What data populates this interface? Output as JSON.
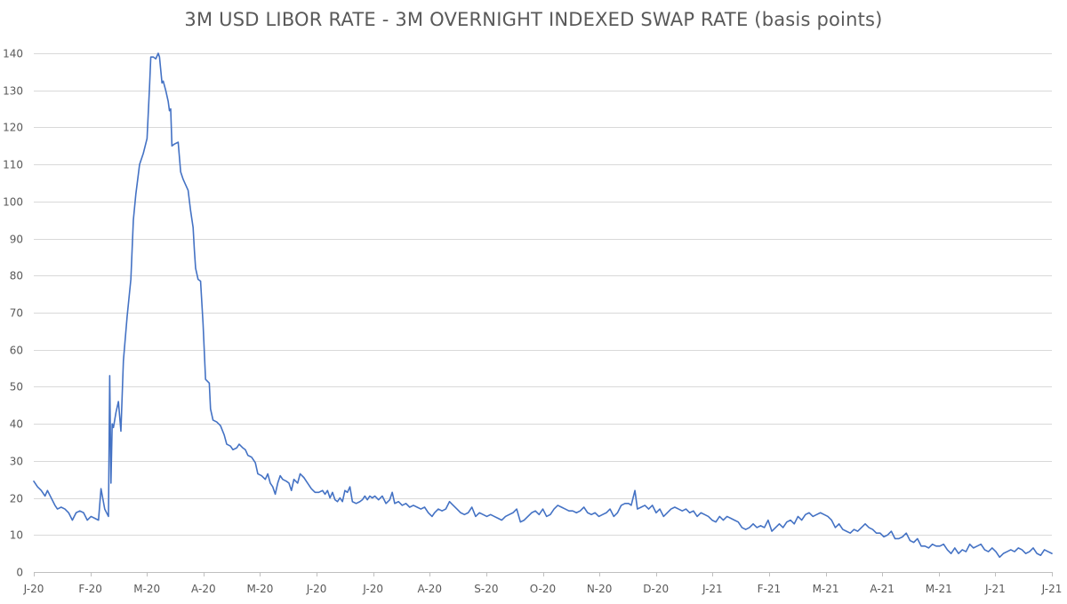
{
  "chart_data": {
    "type": "line",
    "title": "3M USD LIBOR RATE - 3M OVERNIGHT INDEXED SWAP RATE (basis points)",
    "xlabel": "",
    "ylabel": "",
    "ylim": [
      0,
      140
    ],
    "yticks": [
      "0",
      "10",
      "20",
      "30",
      "40",
      "50",
      "60",
      "70",
      "80",
      "90",
      "100",
      "110",
      "120",
      "130",
      "140"
    ],
    "xticks": [
      "J-20",
      "F-20",
      "M-20",
      "A-20",
      "M-20",
      "J-20",
      "J-20",
      "A-20",
      "S-20",
      "O-20",
      "N-20",
      "D-20",
      "J-21",
      "F-21",
      "M-21",
      "A-21",
      "M-21",
      "J-21",
      "J-21"
    ],
    "x_start": "2020-01",
    "x_end": "2021-07",
    "grid": true,
    "legend": "none",
    "line_color": "#4472C4",
    "series": [
      {
        "name": "",
        "values": [
          [
            0,
            24.5
          ],
          [
            3,
            23
          ],
          [
            6,
            22
          ],
          [
            9,
            20.5
          ],
          [
            11,
            22
          ],
          [
            14,
            20
          ],
          [
            17,
            18
          ],
          [
            19,
            17
          ],
          [
            22,
            17.5
          ],
          [
            25,
            17
          ],
          [
            28,
            16
          ],
          [
            31,
            14
          ],
          [
            34,
            16
          ],
          [
            37,
            16.5
          ],
          [
            40,
            16
          ],
          [
            43,
            14
          ],
          [
            46,
            15
          ],
          [
            49,
            14.5
          ],
          [
            52,
            14
          ],
          [
            54,
            22.5
          ],
          [
            57,
            17
          ],
          [
            60,
            15
          ],
          [
            61,
            53
          ],
          [
            62,
            24
          ],
          [
            63,
            40
          ],
          [
            64,
            39
          ],
          [
            66,
            43
          ],
          [
            68,
            46
          ],
          [
            70,
            38
          ],
          [
            72,
            57
          ],
          [
            75,
            69
          ],
          [
            78,
            79
          ],
          [
            80,
            95
          ],
          [
            82,
            102
          ],
          [
            85,
            110
          ],
          [
            88,
            113
          ],
          [
            91,
            117
          ],
          [
            93,
            131
          ],
          [
            94,
            139
          ],
          [
            96,
            139
          ],
          [
            98,
            138.5
          ],
          [
            100,
            140
          ],
          [
            101,
            139
          ],
          [
            103,
            132
          ],
          [
            104,
            132.5
          ],
          [
            106,
            130
          ],
          [
            108,
            127
          ],
          [
            109,
            124.5
          ],
          [
            110,
            125
          ],
          [
            111,
            115
          ],
          [
            113,
            115.5
          ],
          [
            116,
            116
          ],
          [
            118,
            108
          ],
          [
            120,
            106
          ],
          [
            122,
            104.5
          ],
          [
            124,
            103
          ],
          [
            126,
            97.5
          ],
          [
            128,
            93
          ],
          [
            129,
            87
          ],
          [
            130,
            82
          ],
          [
            132,
            79
          ],
          [
            134,
            78.5
          ],
          [
            136,
            67
          ],
          [
            138,
            52
          ],
          [
            141,
            51
          ],
          [
            142,
            44
          ],
          [
            144,
            41
          ],
          [
            147,
            40.5
          ],
          [
            150,
            39.5
          ],
          [
            153,
            37
          ],
          [
            155,
            34.5
          ],
          [
            158,
            34
          ],
          [
            160,
            33
          ],
          [
            163,
            33.5
          ],
          [
            165,
            34.5
          ],
          [
            168,
            33.5
          ],
          [
            170,
            33
          ],
          [
            172,
            31.5
          ],
          [
            175,
            31
          ],
          [
            178,
            29.5
          ],
          [
            180,
            26.5
          ],
          [
            183,
            26
          ],
          [
            186,
            25
          ],
          [
            188,
            26.5
          ],
          [
            190,
            24
          ],
          [
            192,
            23
          ],
          [
            194,
            21
          ],
          [
            196,
            24
          ],
          [
            198,
            26
          ],
          [
            200,
            25
          ],
          [
            203,
            24.5
          ],
          [
            205,
            24
          ],
          [
            207,
            22
          ],
          [
            209,
            25
          ],
          [
            212,
            24
          ],
          [
            214,
            26.5
          ],
          [
            217,
            25.5
          ],
          [
            220,
            24
          ],
          [
            223,
            22.5
          ],
          [
            226,
            21.5
          ],
          [
            229,
            21.5
          ],
          [
            232,
            22
          ],
          [
            234,
            21
          ],
          [
            236,
            22
          ],
          [
            238,
            20
          ],
          [
            240,
            21.5
          ],
          [
            242,
            19.5
          ],
          [
            244,
            19
          ],
          [
            246,
            20
          ],
          [
            248,
            19
          ],
          [
            250,
            22
          ],
          [
            252,
            21.5
          ],
          [
            254,
            23
          ],
          [
            256,
            19
          ],
          [
            259,
            18.5
          ],
          [
            262,
            19
          ],
          [
            264,
            19.5
          ],
          [
            266,
            20.5
          ],
          [
            268,
            19.5
          ],
          [
            270,
            20.5
          ],
          [
            272,
            20
          ],
          [
            274,
            20.5
          ],
          [
            277,
            19.5
          ],
          [
            280,
            20.5
          ],
          [
            283,
            18.5
          ],
          [
            286,
            19.5
          ],
          [
            288,
            21.5
          ],
          [
            290,
            18.5
          ],
          [
            293,
            19
          ],
          [
            296,
            18
          ],
          [
            299,
            18.5
          ],
          [
            302,
            17.5
          ],
          [
            305,
            18
          ],
          [
            308,
            17.5
          ],
          [
            311,
            17
          ],
          [
            314,
            17.5
          ],
          [
            317,
            16
          ],
          [
            320,
            15
          ],
          [
            322,
            16
          ],
          [
            325,
            17
          ],
          [
            328,
            16.5
          ],
          [
            331,
            17
          ],
          [
            334,
            19
          ],
          [
            337,
            18
          ],
          [
            340,
            17
          ],
          [
            343,
            16
          ],
          [
            346,
            15.5
          ],
          [
            349,
            16
          ],
          [
            352,
            17.5
          ],
          [
            355,
            15
          ],
          [
            358,
            16
          ],
          [
            361,
            15.5
          ],
          [
            364,
            15
          ],
          [
            367,
            15.5
          ],
          [
            370,
            15
          ],
          [
            373,
            14.5
          ],
          [
            376,
            14
          ],
          [
            379,
            15
          ],
          [
            382,
            15.5
          ],
          [
            385,
            16
          ],
          [
            388,
            17
          ],
          [
            391,
            13.5
          ],
          [
            394,
            14
          ],
          [
            397,
            15
          ],
          [
            400,
            16
          ],
          [
            403,
            16.5
          ],
          [
            406,
            15.5
          ],
          [
            409,
            17
          ],
          [
            412,
            15
          ],
          [
            415,
            15.5
          ],
          [
            418,
            17
          ],
          [
            421,
            18
          ],
          [
            424,
            17.5
          ],
          [
            427,
            17
          ],
          [
            430,
            16.5
          ],
          [
            433,
            16.5
          ],
          [
            436,
            16
          ],
          [
            439,
            16.5
          ],
          [
            442,
            17.5
          ],
          [
            445,
            16
          ],
          [
            448,
            15.5
          ],
          [
            451,
            16
          ],
          [
            454,
            15
          ],
          [
            457,
            15.5
          ],
          [
            460,
            16
          ],
          [
            463,
            17
          ],
          [
            466,
            15
          ],
          [
            469,
            16
          ],
          [
            472,
            18
          ],
          [
            475,
            18.5
          ],
          [
            478,
            18.5
          ],
          [
            480,
            18
          ],
          [
            483,
            22
          ],
          [
            485,
            17
          ],
          [
            488,
            17.5
          ],
          [
            491,
            18
          ],
          [
            494,
            17
          ],
          [
            497,
            18
          ],
          [
            500,
            16
          ],
          [
            503,
            17
          ],
          [
            506,
            15
          ],
          [
            509,
            16
          ],
          [
            512,
            17
          ],
          [
            515,
            17.5
          ],
          [
            518,
            17
          ],
          [
            521,
            16.5
          ],
          [
            524,
            17
          ],
          [
            527,
            16
          ],
          [
            530,
            16.5
          ],
          [
            533,
            15
          ],
          [
            536,
            16
          ],
          [
            539,
            15.5
          ],
          [
            542,
            15
          ],
          [
            545,
            14
          ],
          [
            548,
            13.5
          ],
          [
            551,
            15
          ],
          [
            554,
            14
          ],
          [
            557,
            15
          ],
          [
            560,
            14.5
          ],
          [
            563,
            14
          ],
          [
            566,
            13.5
          ],
          [
            569,
            12
          ],
          [
            572,
            11.5
          ],
          [
            575,
            12
          ],
          [
            578,
            13
          ],
          [
            581,
            12
          ],
          [
            584,
            12.5
          ],
          [
            587,
            12
          ],
          [
            590,
            14
          ],
          [
            593,
            11
          ],
          [
            596,
            12
          ],
          [
            599,
            13
          ],
          [
            602,
            12
          ],
          [
            605,
            13.5
          ],
          [
            608,
            14
          ],
          [
            611,
            13
          ],
          [
            614,
            15
          ],
          [
            617,
            14
          ],
          [
            620,
            15.5
          ],
          [
            623,
            16
          ],
          [
            626,
            15
          ],
          [
            629,
            15.5
          ],
          [
            632,
            16
          ],
          [
            635,
            15.5
          ],
          [
            638,
            15
          ],
          [
            641,
            14
          ],
          [
            644,
            12
          ],
          [
            647,
            13
          ],
          [
            650,
            11.5
          ],
          [
            653,
            11
          ],
          [
            656,
            10.5
          ],
          [
            659,
            11.5
          ],
          [
            662,
            11
          ],
          [
            665,
            12
          ],
          [
            668,
            13
          ],
          [
            671,
            12
          ],
          [
            674,
            11.5
          ],
          [
            677,
            10.5
          ],
          [
            680,
            10.5
          ],
          [
            683,
            9.5
          ],
          [
            686,
            10
          ],
          [
            689,
            11
          ],
          [
            692,
            9
          ],
          [
            695,
            9
          ],
          [
            698,
            9.5
          ],
          [
            701,
            10.5
          ],
          [
            704,
            8.5
          ],
          [
            707,
            8
          ],
          [
            710,
            9
          ],
          [
            713,
            7
          ],
          [
            716,
            7
          ],
          [
            719,
            6.5
          ],
          [
            722,
            7.5
          ],
          [
            725,
            7
          ],
          [
            728,
            7
          ],
          [
            731,
            7.5
          ],
          [
            734,
            6
          ],
          [
            737,
            5
          ],
          [
            740,
            6.5
          ],
          [
            743,
            5
          ],
          [
            746,
            6
          ],
          [
            749,
            5.5
          ],
          [
            752,
            7.5
          ],
          [
            755,
            6.5
          ],
          [
            758,
            7
          ],
          [
            761,
            7.5
          ],
          [
            764,
            6
          ],
          [
            767,
            5.5
          ],
          [
            770,
            6.5
          ],
          [
            773,
            5.5
          ],
          [
            776,
            4
          ],
          [
            779,
            5
          ],
          [
            782,
            5.5
          ],
          [
            785,
            6
          ],
          [
            788,
            5.5
          ],
          [
            791,
            6.5
          ],
          [
            794,
            6
          ],
          [
            797,
            5
          ],
          [
            800,
            5.5
          ],
          [
            803,
            6.5
          ],
          [
            806,
            5
          ],
          [
            809,
            4.5
          ],
          [
            812,
            6
          ],
          [
            815,
            5.5
          ],
          [
            818,
            5
          ]
        ]
      }
    ]
  }
}
